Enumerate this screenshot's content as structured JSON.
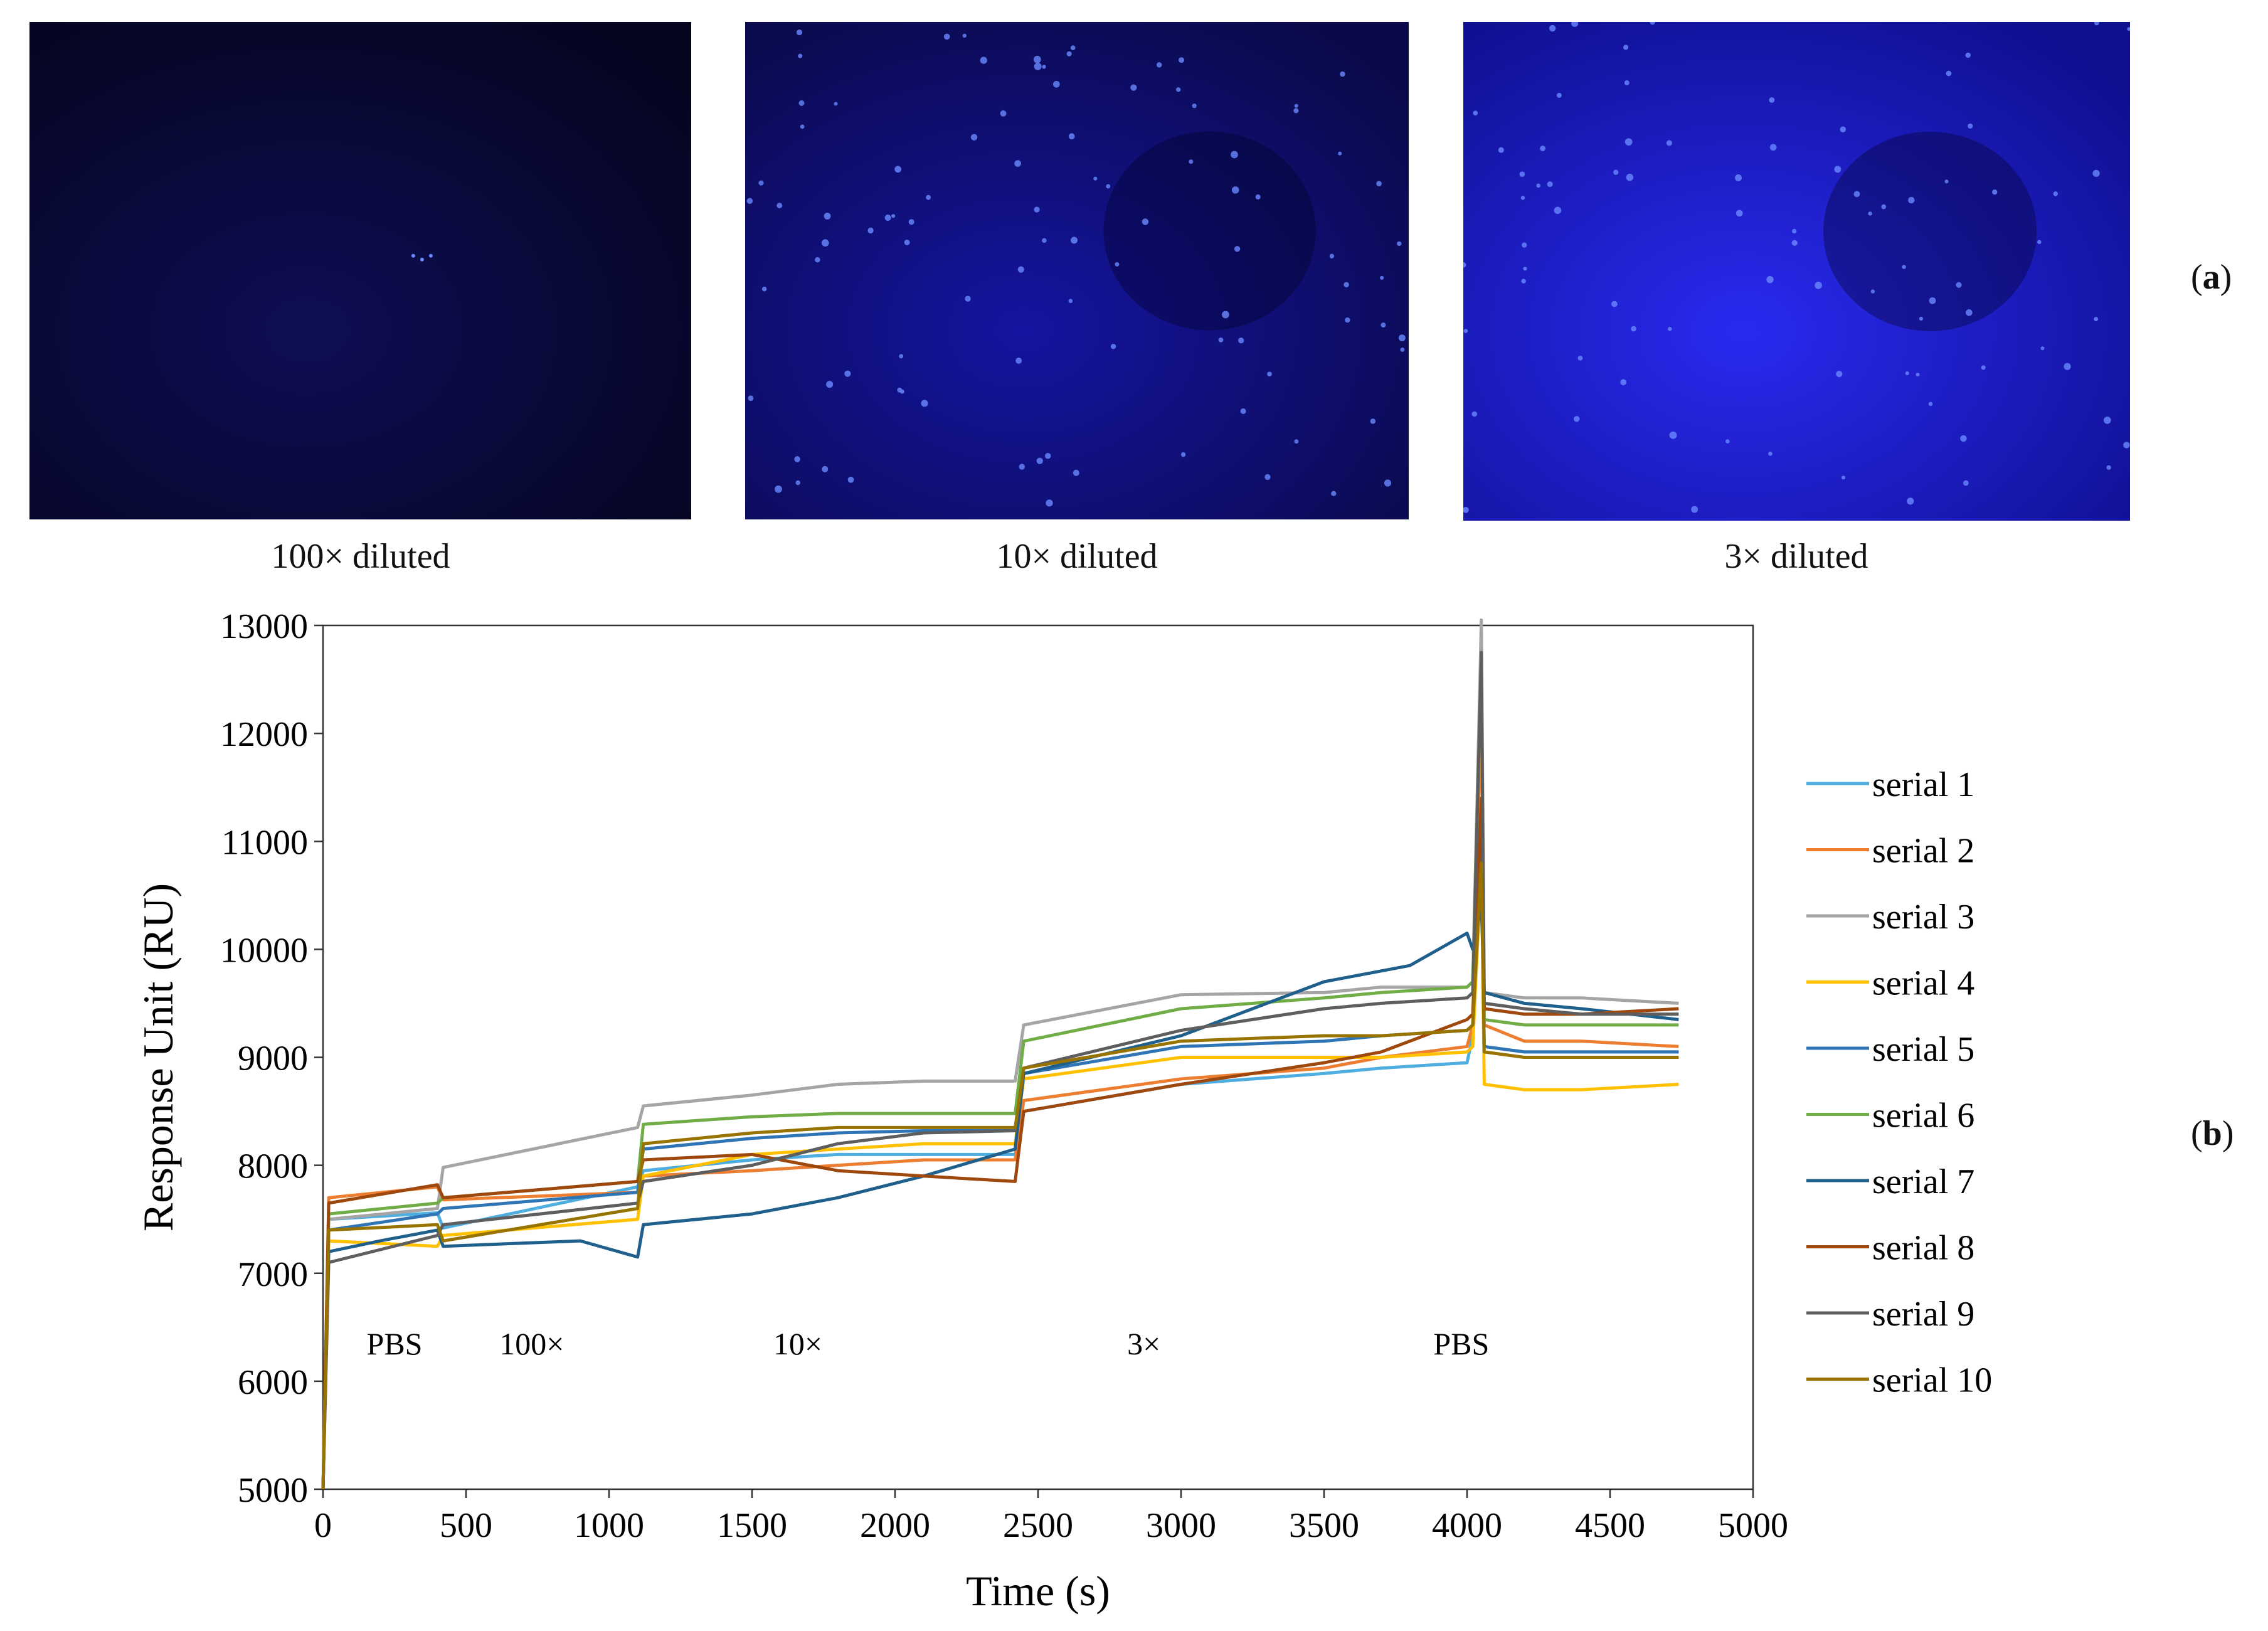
{
  "panels": {
    "a": {
      "label": "a",
      "images": [
        {
          "caption": "100× diluted",
          "brightness": 0.05,
          "dot_count": 3
        },
        {
          "caption": "10× diluted",
          "brightness": 0.55,
          "dot_count": 95
        },
        {
          "caption": "3× diluted",
          "brightness": 0.85,
          "dot_count": 80
        }
      ],
      "colors": {
        "deep": "#050520",
        "mid": "#1414a0",
        "bright": "#2a2af0",
        "dot": "#6a8aff"
      }
    },
    "b": {
      "label": "b"
    }
  },
  "chart_data": {
    "type": "line",
    "xlabel": "Time (s)",
    "ylabel": "Response Unit (RU)",
    "xlim": [
      0,
      5000
    ],
    "ylim": [
      5000,
      13000
    ],
    "xticks": [
      0,
      500,
      1000,
      1500,
      2000,
      2500,
      3000,
      3500,
      4000,
      4500,
      5000
    ],
    "yticks": [
      5000,
      6000,
      7000,
      8000,
      9000,
      10000,
      11000,
      12000,
      13000
    ],
    "grid": false,
    "legend_position": "right",
    "annotations": [
      {
        "text": "PBS",
        "x": 250,
        "y": 6250
      },
      {
        "text": "100×",
        "x": 730,
        "y": 6250
      },
      {
        "text": "10×",
        "x": 1660,
        "y": 6250
      },
      {
        "text": "3×",
        "x": 2870,
        "y": 6250
      },
      {
        "text": "PBS",
        "x": 3980,
        "y": 6250
      }
    ],
    "series": [
      {
        "name": "serial 1",
        "color": "#4eaee0",
        "x": [
          0,
          20,
          400,
          420,
          1100,
          1120,
          1500,
          1800,
          2100,
          2420,
          2450,
          3000,
          3500,
          3700,
          4000,
          4020,
          4050,
          4060,
          4200,
          4400,
          4740
        ],
        "y": [
          5000,
          7500,
          7560,
          7420,
          7800,
          7950,
          8050,
          8100,
          8100,
          8100,
          8500,
          8750,
          8850,
          8900,
          8950,
          9200,
          11000,
          9100,
          9050,
          9050,
          9050
        ]
      },
      {
        "name": "serial 2",
        "color": "#ed7d31",
        "x": [
          0,
          20,
          400,
          420,
          1100,
          1120,
          1500,
          1800,
          2100,
          2420,
          2450,
          3000,
          3500,
          3700,
          4000,
          4020,
          4050,
          4060,
          4200,
          4400,
          4740
        ],
        "y": [
          5000,
          7700,
          7800,
          7680,
          7750,
          7900,
          7950,
          8000,
          8050,
          8050,
          8600,
          8800,
          8900,
          9000,
          9100,
          9300,
          12300,
          9300,
          9150,
          9150,
          9100
        ]
      },
      {
        "name": "serial 3",
        "color": "#a5a5a5",
        "x": [
          0,
          20,
          400,
          420,
          1100,
          1120,
          1500,
          1800,
          2100,
          2420,
          2450,
          3000,
          3500,
          3700,
          4000,
          4020,
          4050,
          4060,
          4200,
          4400,
          4740
        ],
        "y": [
          5000,
          7500,
          7600,
          7980,
          8350,
          8550,
          8650,
          8750,
          8780,
          8780,
          9300,
          9580,
          9600,
          9650,
          9650,
          9700,
          13050,
          9600,
          9550,
          9550,
          9500
        ]
      },
      {
        "name": "serial 4",
        "color": "#ffc000",
        "x": [
          0,
          20,
          400,
          420,
          1100,
          1120,
          1500,
          1800,
          2100,
          2420,
          2450,
          3000,
          3500,
          3700,
          4000,
          4020,
          4050,
          4060,
          4200,
          4400,
          4740
        ],
        "y": [
          5000,
          7300,
          7250,
          7350,
          7500,
          7900,
          8100,
          8150,
          8200,
          8200,
          8800,
          9000,
          9000,
          9000,
          9050,
          9100,
          10800,
          8750,
          8700,
          8700,
          8750
        ]
      },
      {
        "name": "serial 5",
        "color": "#2f75b5",
        "x": [
          0,
          20,
          400,
          420,
          1100,
          1120,
          1500,
          1800,
          2100,
          2420,
          2450,
          3000,
          3500,
          3700,
          4000,
          4020,
          4050,
          4060,
          4200,
          4400,
          4740
        ],
        "y": [
          5000,
          7400,
          7550,
          7600,
          7750,
          8150,
          8250,
          8300,
          8320,
          8320,
          8850,
          9100,
          9150,
          9200,
          9250,
          9300,
          11000,
          9100,
          9050,
          9050,
          9050
        ]
      },
      {
        "name": "serial 6",
        "color": "#70ad47",
        "x": [
          0,
          20,
          400,
          420,
          1100,
          1120,
          1500,
          1800,
          2100,
          2420,
          2450,
          3000,
          3500,
          3700,
          4000,
          4020,
          4050,
          4060,
          4200,
          4400,
          4740
        ],
        "y": [
          5000,
          7550,
          7650,
          7700,
          7850,
          8380,
          8450,
          8480,
          8480,
          8480,
          9150,
          9450,
          9550,
          9600,
          9650,
          9700,
          12700,
          9350,
          9300,
          9300,
          9300
        ]
      },
      {
        "name": "serial 7",
        "color": "#1f5f8b",
        "x": [
          0,
          20,
          200,
          400,
          420,
          900,
          1100,
          1120,
          1500,
          1800,
          2100,
          2420,
          2450,
          3000,
          3500,
          3800,
          4000,
          4020,
          4050,
          4060,
          4200,
          4400,
          4740
        ],
        "y": [
          5000,
          7200,
          7300,
          7400,
          7250,
          7300,
          7150,
          7450,
          7550,
          7700,
          7900,
          8150,
          8850,
          9200,
          9700,
          9850,
          10150,
          10000,
          10400,
          9600,
          9500,
          9450,
          9350
        ]
      },
      {
        "name": "serial 8",
        "color": "#9e480e",
        "x": [
          0,
          20,
          400,
          420,
          1100,
          1120,
          1500,
          1800,
          2100,
          2420,
          2450,
          3000,
          3500,
          3700,
          4000,
          4020,
          4050,
          4060,
          4200,
          4400,
          4740
        ],
        "y": [
          5000,
          7650,
          7820,
          7700,
          7850,
          8050,
          8100,
          7950,
          7900,
          7850,
          8500,
          8750,
          8950,
          9050,
          9350,
          9400,
          11400,
          9450,
          9400,
          9400,
          9450
        ]
      },
      {
        "name": "serial 9",
        "color": "#5e5e5e",
        "x": [
          0,
          20,
          400,
          420,
          1100,
          1120,
          1500,
          1800,
          2100,
          2420,
          2450,
          3000,
          3500,
          3700,
          4000,
          4020,
          4050,
          4060,
          4200,
          4400,
          4740
        ],
        "y": [
          5000,
          7100,
          7350,
          7450,
          7650,
          7850,
          8000,
          8200,
          8300,
          8320,
          8900,
          9250,
          9450,
          9500,
          9550,
          9600,
          12750,
          9500,
          9450,
          9400,
          9400
        ]
      },
      {
        "name": "serial 10",
        "color": "#997300",
        "x": [
          0,
          20,
          400,
          420,
          1100,
          1120,
          1500,
          1800,
          2100,
          2420,
          2450,
          3000,
          3500,
          3700,
          4000,
          4020,
          4050,
          4060,
          4200,
          4400,
          4740
        ],
        "y": [
          5000,
          7400,
          7450,
          7300,
          7600,
          8200,
          8300,
          8350,
          8350,
          8350,
          8900,
          9150,
          9200,
          9200,
          9250,
          9300,
          10800,
          9050,
          9000,
          9000,
          9000
        ]
      }
    ]
  }
}
